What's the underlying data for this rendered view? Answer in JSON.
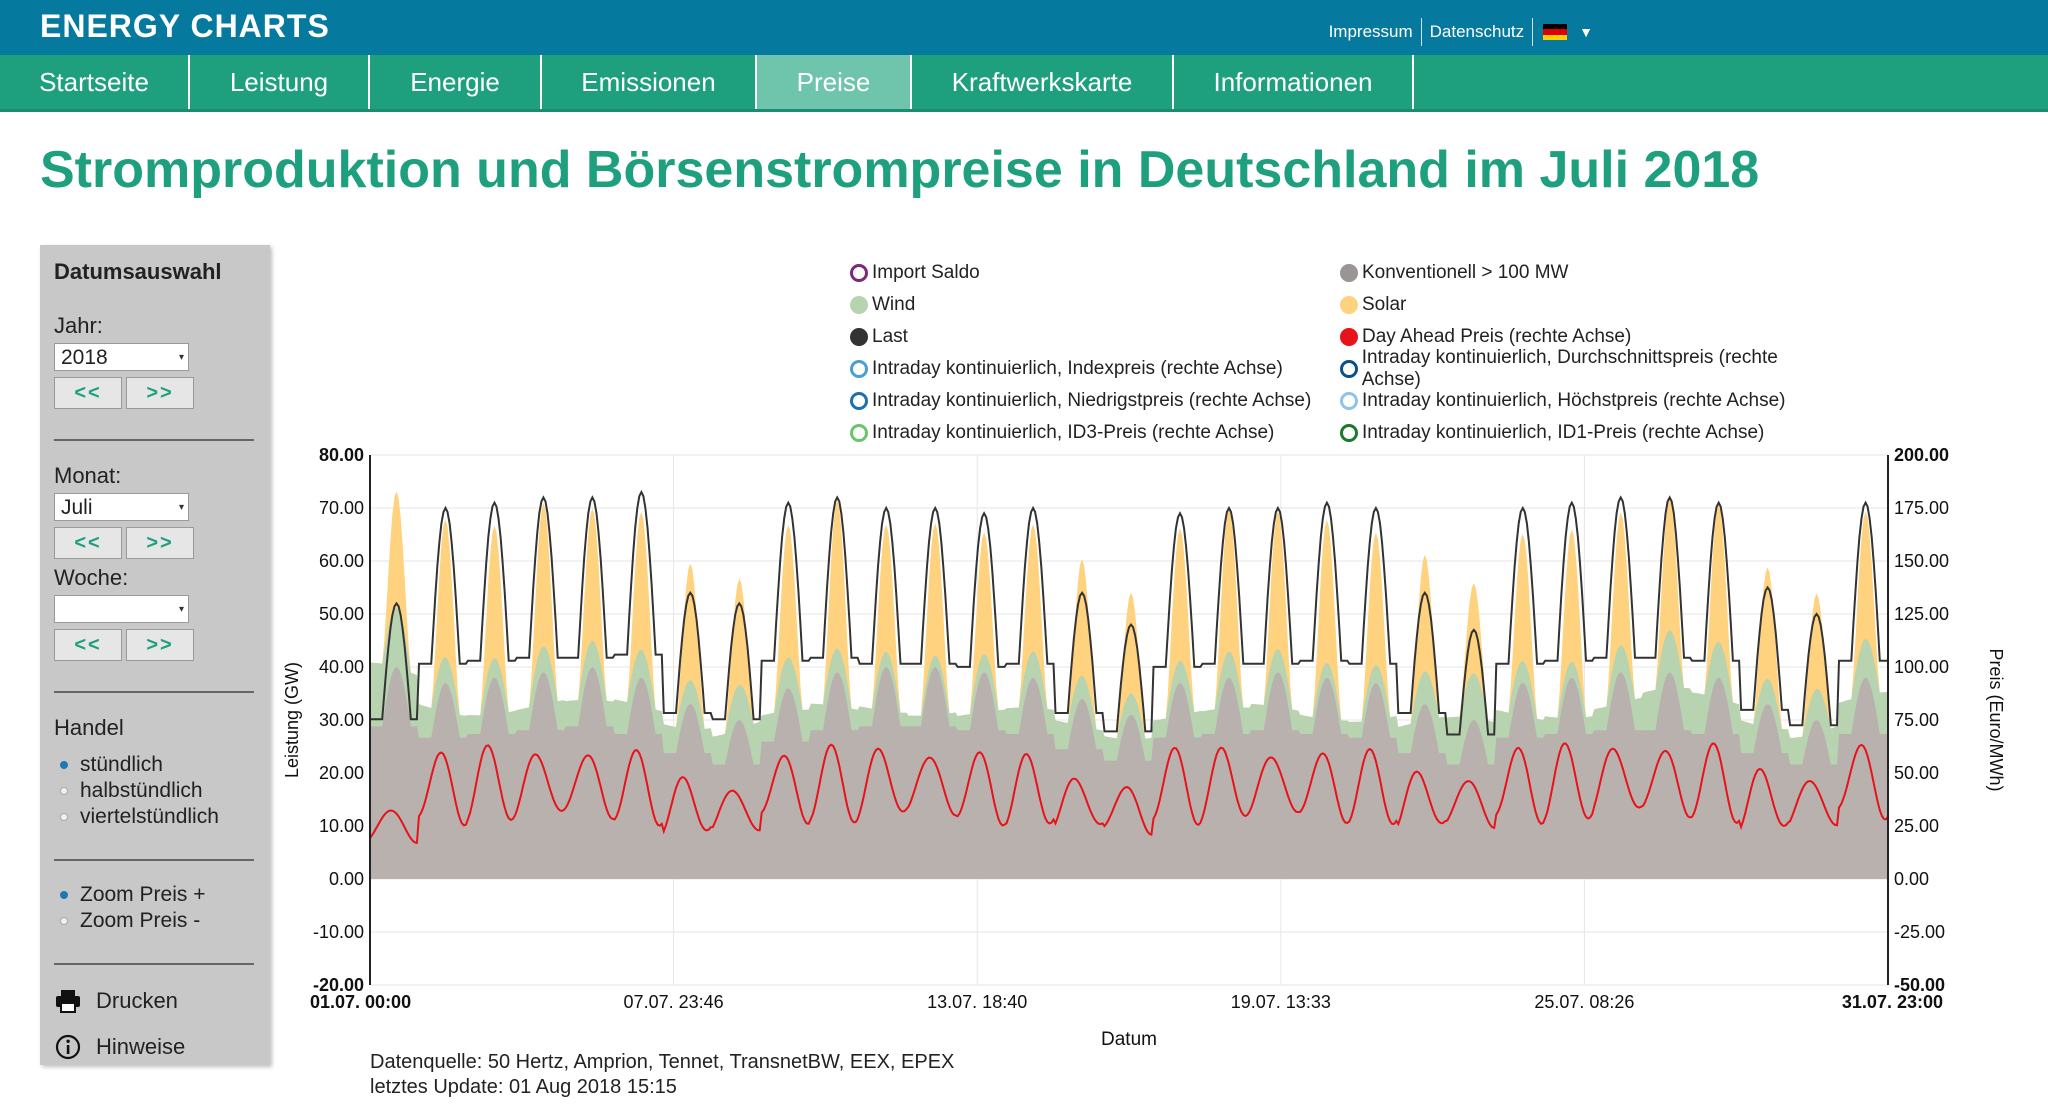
{
  "app": {
    "brand": "ENERGY CHARTS",
    "top_links": [
      "Impressum",
      "Datenschutz"
    ],
    "language_flag": "de-flag-icon"
  },
  "nav": {
    "items": [
      {
        "label": "Startseite",
        "active": false
      },
      {
        "label": "Leistung",
        "active": false
      },
      {
        "label": "Energie",
        "active": false
      },
      {
        "label": "Emissionen",
        "active": false
      },
      {
        "label": "Preise",
        "active": true
      },
      {
        "label": "Kraftwerkskarte",
        "active": false
      },
      {
        "label": "Informationen",
        "active": false
      }
    ]
  },
  "page_title": "Stromproduktion und Börsenstrompreise in Deutschland im Juli 2018",
  "sidebar": {
    "heading": "Datumsauswahl",
    "year_label": "Jahr:",
    "year_value": "2018",
    "month_label": "Monat:",
    "month_value": "Juli",
    "week_label": "Woche:",
    "week_value": "",
    "prev_label": "<<",
    "next_label": ">>",
    "trade_label": "Handel",
    "trade_options": [
      {
        "label": "stündlich",
        "checked": true
      },
      {
        "label": "halbstündlich",
        "checked": false
      },
      {
        "label": "viertelstündlich",
        "checked": false
      }
    ],
    "zoom_options": [
      {
        "label": "Zoom Preis +",
        "checked": true
      },
      {
        "label": "Zoom Preis -",
        "checked": false
      }
    ],
    "print_label": "Drucken",
    "hints_label": "Hinweise"
  },
  "chart_data": {
    "type": "area",
    "title": "",
    "xlabel": "Datum",
    "ylabel_left": "Leistung (GW)",
    "ylabel_right": "Preis (Euro/MWh)",
    "ylim_left": [
      -20,
      80
    ],
    "ylim_right": [
      -50,
      200
    ],
    "yticks_left": [
      "80.00",
      "70.00",
      "60.00",
      "50.00",
      "40.00",
      "30.00",
      "20.00",
      "10.00",
      "0.00",
      "-10.00",
      "-20.00"
    ],
    "yticks_right": [
      "200.00",
      "175.00",
      "150.00",
      "125.00",
      "100.00",
      "75.00",
      "50.00",
      "25.00",
      "0.00",
      "-25.00",
      "-50.00"
    ],
    "xticks": [
      "01.07. 00:00",
      "07.07. 23:46",
      "13.07. 18:40",
      "19.07. 13:33",
      "25.07. 08:26",
      "31.07. 23:00"
    ],
    "grid": true,
    "legend_position": "top",
    "legend": [
      {
        "label": "Import Saldo",
        "color": "#7b2a7b",
        "filled": false
      },
      {
        "label": "Konventionell > 100 MW",
        "color": "#9a9494",
        "filled": true
      },
      {
        "label": "Wind",
        "color": "#b7d3b0",
        "filled": true
      },
      {
        "label": "Solar",
        "color": "#ffd27f",
        "filled": true
      },
      {
        "label": "Last",
        "color": "#333333",
        "filled": true
      },
      {
        "label": "Day Ahead Preis (rechte Achse)",
        "color": "#e8121a",
        "filled": true
      },
      {
        "label": "Intraday kontinuierlich, Indexpreis (rechte Achse)",
        "color": "#4a9ed8",
        "filled": false
      },
      {
        "label": "Intraday kontinuierlich, Durchschnittspreis (rechte Achse)",
        "color": "#0b4f8a",
        "filled": false
      },
      {
        "label": "Intraday kontinuierlich, Niedrigstpreis (rechte Achse)",
        "color": "#1d6fb0",
        "filled": false
      },
      {
        "label": "Intraday kontinuierlich, Höchstpreis (rechte Achse)",
        "color": "#8fc4e8",
        "filled": false
      },
      {
        "label": "Intraday kontinuierlich, ID3-Preis (rechte Achse)",
        "color": "#6cc46a",
        "filled": false
      },
      {
        "label": "Intraday kontinuierlich, ID1-Preis (rechte Achse)",
        "color": "#1a7a2a",
        "filled": false
      }
    ],
    "days": 31,
    "series": [
      {
        "name": "Konventionell > 100 MW",
        "unit": "GW",
        "daily_peak": [
          40,
          37,
          38,
          39,
          40,
          38,
          33,
          30,
          36,
          39,
          40,
          40,
          39,
          38,
          34,
          31,
          37,
          38,
          39,
          38,
          37,
          33,
          30,
          37,
          38,
          39,
          39,
          38,
          33,
          30,
          38
        ]
      },
      {
        "name": "Wind",
        "unit": "GW",
        "daily_peak": [
          12,
          8,
          7,
          6,
          5,
          7,
          9,
          10,
          6,
          5,
          5,
          4,
          4,
          5,
          6,
          8,
          6,
          5,
          5,
          5,
          6,
          7,
          9,
          6,
          6,
          7,
          8,
          8,
          9,
          10,
          8
        ]
      },
      {
        "name": "Solar",
        "unit": "GW",
        "daily_peak": [
          22,
          26,
          25,
          27,
          25,
          26,
          22,
          20,
          25,
          28,
          24,
          25,
          23,
          24,
          22,
          19,
          25,
          27,
          26,
          27,
          25,
          22,
          17,
          24,
          25,
          25,
          25,
          26,
          21,
          18,
          24
        ]
      },
      {
        "name": "Last",
        "unit": "GW",
        "daily_peak": [
          52,
          70,
          71,
          72,
          72,
          73,
          54,
          52,
          71,
          72,
          70,
          70,
          69,
          70,
          54,
          48,
          69,
          70,
          70,
          71,
          70,
          54,
          47,
          70,
          71,
          72,
          72,
          71,
          55,
          50,
          71
        ]
      },
      {
        "name": "Day Ahead Preis (rechte Achse)",
        "unit": "Euro/MWh",
        "daily_peak": [
          35,
          60,
          62,
          62,
          62,
          60,
          48,
          45,
          60,
          62,
          63,
          62,
          60,
          58,
          50,
          46,
          61,
          62,
          62,
          61,
          60,
          52,
          50,
          62,
          63,
          65,
          64,
          63,
          52,
          50,
          65
        ]
      }
    ]
  },
  "source": {
    "line1": "Datenquelle: 50 Hertz, Amprion, Tennet, TransnetBW, EEX, EPEX",
    "line2": "letztes Update: 01 Aug 2018 15:15"
  }
}
